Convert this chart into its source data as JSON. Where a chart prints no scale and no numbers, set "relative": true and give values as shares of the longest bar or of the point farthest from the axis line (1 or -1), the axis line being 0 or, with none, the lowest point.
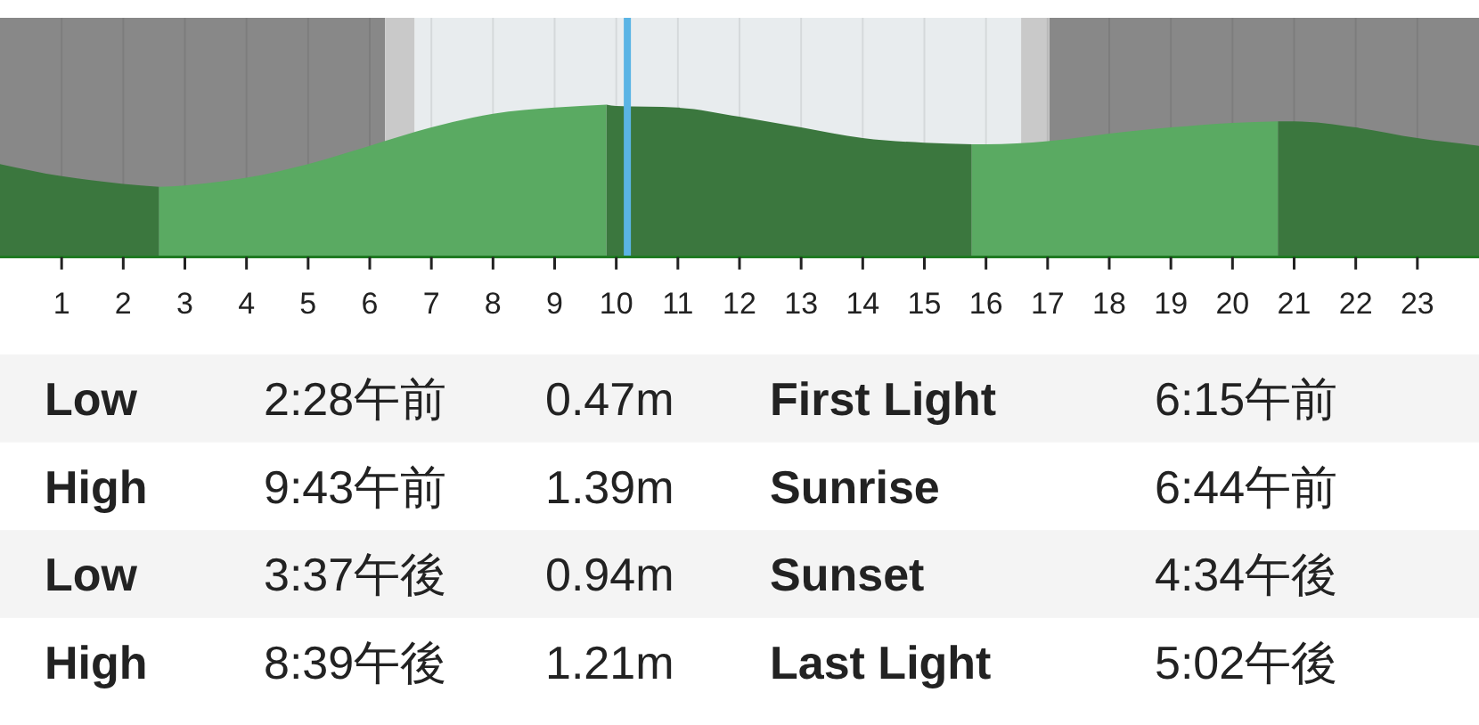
{
  "chart_data": [
    {
      "type": "area",
      "relative": true,
      "xlim": [
        0,
        24
      ],
      "xticks": [
        1,
        2,
        3,
        4,
        5,
        6,
        7,
        8,
        9,
        10,
        11,
        12,
        13,
        14,
        15,
        16,
        17,
        18,
        19,
        20,
        21,
        22,
        23
      ],
      "tick_labels": "x",
      "grid": "x",
      "bands": [
        {
          "axis": "x",
          "from": 0,
          "to": 6.25,
          "color": "#888888"
        },
        {
          "axis": "x",
          "from": 6.25,
          "to": 6.73,
          "color": "#c9c9c9"
        },
        {
          "axis": "x",
          "from": 6.73,
          "to": 16.57,
          "color": "#e8ecee"
        },
        {
          "axis": "x",
          "from": 16.57,
          "to": 17.03,
          "color": "#c9c9c9"
        },
        {
          "axis": "x",
          "from": 17.03,
          "to": 24,
          "color": "#888888"
        }
      ],
      "ref_lines": [
        {
          "axis": "x",
          "value": 10.18,
          "color": "#5ab4e5"
        }
      ],
      "series": [
        {
          "color": "#3b773e",
          "x": [
            0,
            1,
            2,
            2.58
          ],
          "values": [
            0.61,
            0.53,
            0.48,
            0.46
          ]
        },
        {
          "color": "#5aaa62",
          "x": [
            2.58,
            3,
            4,
            5,
            6,
            7,
            8,
            9,
            9.84
          ],
          "values": [
            0.46,
            0.47,
            0.52,
            0.61,
            0.73,
            0.85,
            0.94,
            0.98,
            1
          ]
        },
        {
          "color": "#3b773e",
          "x": [
            9.84,
            10,
            11,
            12,
            13,
            14,
            15,
            15.77
          ],
          "values": [
            1,
            0.99,
            0.98,
            0.92,
            0.85,
            0.78,
            0.75,
            0.74
          ]
        },
        {
          "color": "#5aaa62",
          "x": [
            15.77,
            16,
            17,
            18,
            19,
            20,
            20.74
          ],
          "values": [
            0.74,
            0.74,
            0.76,
            0.81,
            0.85,
            0.88,
            0.89
          ]
        },
        {
          "color": "#3b773e",
          "x": [
            20.74,
            21,
            22,
            23,
            24
          ],
          "values": [
            0.89,
            0.89,
            0.85,
            0.78,
            0.73
          ]
        }
      ]
    },
    {
      "type": "other",
      "annotations": [
        "Low",
        "2:28午前",
        "0.47m",
        "First Light",
        "6:15午前",
        "High",
        "9:43午前",
        "1.39m",
        "Sunrise",
        "6:44午前",
        "Low",
        "3:37午後",
        "0.94m",
        "Sunset",
        "4:34午後",
        "High",
        "8:39午後",
        "1.21m",
        "Last Light",
        "5:02午後"
      ]
    }
  ]
}
